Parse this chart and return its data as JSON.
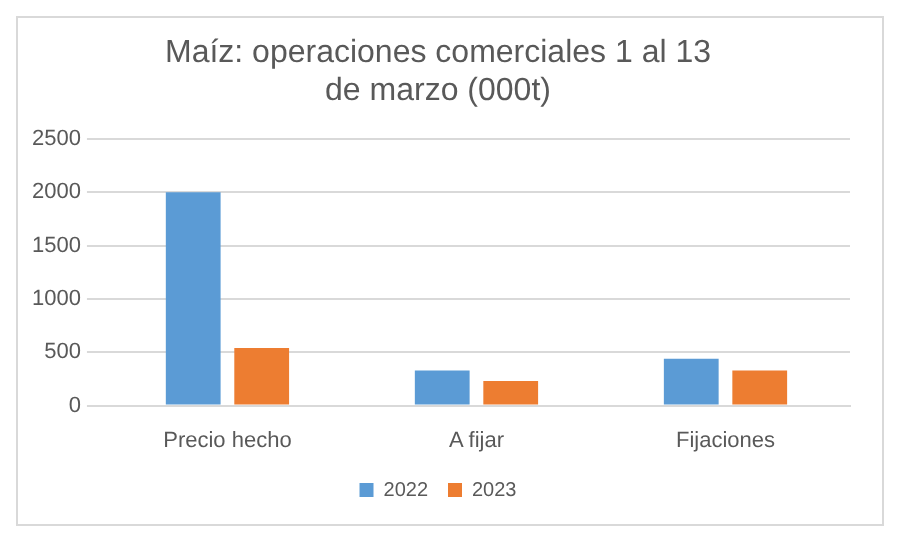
{
  "chart_data": {
    "type": "bar",
    "title": "Maíz: operaciones comerciales 1 al 13 de marzo (000t)",
    "categories": [
      "Precio hecho",
      "A fijar",
      "Fijaciones"
    ],
    "series": [
      {
        "name": "2022",
        "color": "#5b9bd5",
        "values": [
          2000,
          330,
          440
        ]
      },
      {
        "name": "2023",
        "color": "#ed7d31",
        "values": [
          540,
          230,
          330
        ]
      }
    ],
    "ylim": [
      0,
      2500
    ],
    "yticks": [
      0,
      500,
      1000,
      1500,
      2000,
      2500
    ],
    "grid": "y",
    "legend": "bottom"
  }
}
